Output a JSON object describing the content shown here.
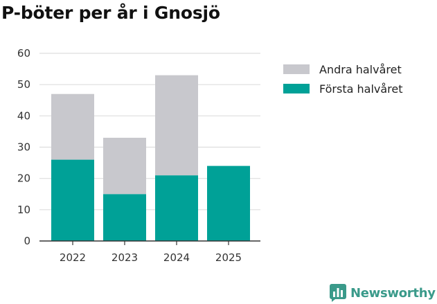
{
  "chart_data": {
    "type": "bar",
    "stacked": true,
    "title": "P-böter per år i Gnosjö",
    "xlabel": "",
    "ylabel": "",
    "categories": [
      "2022",
      "2023",
      "2024",
      "2025"
    ],
    "series": [
      {
        "name": "Första halvåret",
        "color": "#00a197",
        "values": [
          26,
          15,
          21,
          24
        ]
      },
      {
        "name": "Andra halvåret",
        "color": "#c8c8cd",
        "values": [
          21,
          18,
          32,
          0
        ]
      }
    ],
    "legend_order": [
      "Andra halvåret",
      "Första halvåret"
    ],
    "ylim": [
      0,
      60
    ],
    "yticks": [
      0,
      10,
      20,
      30,
      40,
      50,
      60
    ],
    "grid": true,
    "legend_position": "right"
  },
  "brand": {
    "name": "Newsworthy",
    "color": "#3a9a8a",
    "icon": "bar-chart-logo-icon"
  }
}
